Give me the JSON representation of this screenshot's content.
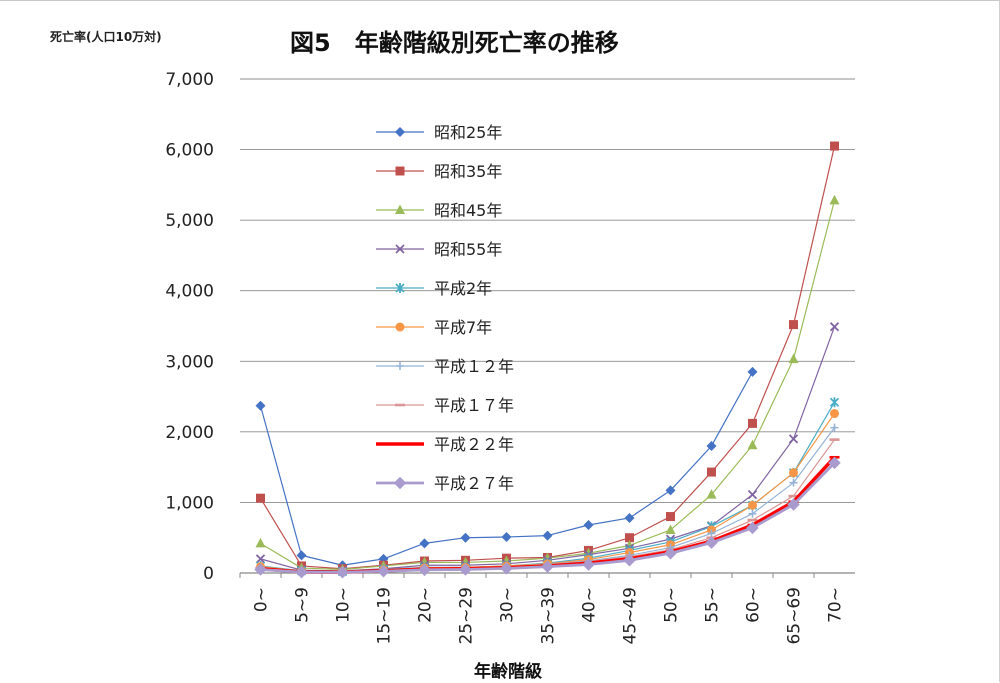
{
  "chart_data": {
    "type": "line",
    "title": "図5　年齢階級別死亡率の推移",
    "ylabel": "死亡率(人口10万対)",
    "xlabel": "年齢階級",
    "categories": [
      "0~",
      "5~9",
      "10~",
      "15~19",
      "20~",
      "25~29",
      "30~",
      "35~39",
      "40~",
      "45~49",
      "50~",
      "55~",
      "60~",
      "65~69",
      "70~"
    ],
    "ylim": [
      0,
      7000
    ],
    "yticks": [
      0,
      1000,
      2000,
      3000,
      4000,
      5000,
      6000,
      7000
    ],
    "ytick_labels": [
      "0",
      "1,000",
      "2,000",
      "3,000",
      "4,000",
      "5,000",
      "6,000",
      "7,000"
    ],
    "grid": true,
    "legend_position": "inside-left",
    "series": [
      {
        "name": "昭和25年",
        "color": "#4472c4",
        "marker": "diamond",
        "width": 1.2,
        "values": [
          2370,
          250,
          110,
          200,
          420,
          500,
          510,
          530,
          680,
          780,
          1170,
          1800,
          2850,
          null,
          null
        ]
      },
      {
        "name": "昭和35年",
        "color": "#c0504d",
        "marker": "square",
        "width": 1.2,
        "values": [
          1060,
          100,
          60,
          110,
          170,
          180,
          210,
          220,
          320,
          500,
          800,
          1430,
          2120,
          3520,
          6050
        ]
      },
      {
        "name": "昭和45年",
        "color": "#9bbb59",
        "marker": "triangle",
        "width": 1.2,
        "values": [
          420,
          70,
          50,
          100,
          150,
          150,
          170,
          210,
          280,
          390,
          610,
          1110,
          1810,
          3030,
          5280
        ]
      },
      {
        "name": "昭和55年",
        "color": "#8064a2",
        "marker": "x",
        "width": 1.2,
        "values": [
          200,
          40,
          30,
          60,
          110,
          110,
          130,
          180,
          260,
          350,
          480,
          670,
          1110,
          1900,
          3490
        ]
      },
      {
        "name": "平成2年",
        "color": "#4bacc6",
        "marker": "asterisk",
        "width": 1.2,
        "values": [
          100,
          30,
          20,
          50,
          80,
          80,
          100,
          140,
          210,
          320,
          440,
          660,
          960,
          1420,
          2420
        ]
      },
      {
        "name": "平成7年",
        "color": "#f79646",
        "marker": "circle",
        "width": 1.2,
        "values": [
          90,
          25,
          20,
          45,
          75,
          80,
          100,
          130,
          190,
          290,
          400,
          610,
          960,
          1420,
          2260
        ]
      },
      {
        "name": "平成１２年",
        "color": "#95b3d7",
        "marker": "plus",
        "width": 1.2,
        "values": [
          80,
          20,
          15,
          40,
          70,
          70,
          90,
          120,
          170,
          250,
          360,
          560,
          840,
          1280,
          2060
        ]
      },
      {
        "name": "平成１７年",
        "color": "#d99694",
        "marker": "dash",
        "width": 1.2,
        "values": [
          70,
          18,
          15,
          35,
          65,
          70,
          85,
          110,
          160,
          230,
          330,
          500,
          750,
          1090,
          1890
        ]
      },
      {
        "name": "平成２２年",
        "color": "#ff0000",
        "marker": "dash",
        "width": 3.5,
        "values": [
          60,
          15,
          12,
          30,
          55,
          60,
          75,
          100,
          140,
          200,
          300,
          450,
          680,
          1010,
          1640
        ]
      },
      {
        "name": "平成２７年",
        "color": "#a99bce",
        "marker": "diamond",
        "width": 2.8,
        "values": [
          50,
          12,
          10,
          25,
          45,
          50,
          65,
          90,
          120,
          180,
          280,
          430,
          640,
          970,
          1560
        ]
      }
    ]
  }
}
